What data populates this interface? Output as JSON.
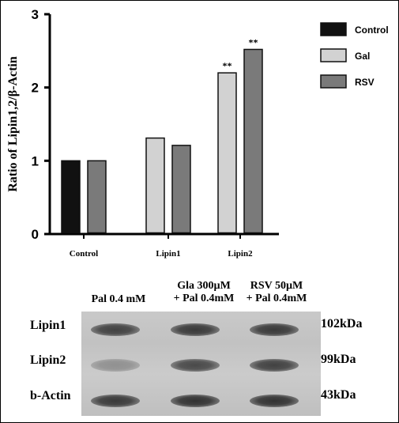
{
  "chart_data": {
    "type": "bar",
    "ylabel": "Ratio of Lipin1,2/β-Actin",
    "ylim": [
      0,
      3
    ],
    "yticks": [
      0,
      1,
      2,
      3
    ],
    "categories": [
      "Control",
      "Lipin1",
      "Lipin2"
    ],
    "grid": false,
    "legend_position": "top-right",
    "series": [
      {
        "name": "Control",
        "color": "#111111",
        "values": [
          1.0,
          null,
          null
        ]
      },
      {
        "name": "Gal",
        "color": "#d2d2d2",
        "values": [
          null,
          1.31,
          2.2
        ]
      },
      {
        "name": "RSV",
        "color": "#7a7a7a",
        "values": [
          1.0,
          1.21,
          2.52
        ]
      }
    ],
    "annotations": [
      {
        "category": "Lipin2",
        "series": "Gal",
        "text": "**"
      },
      {
        "category": "Lipin2",
        "series": "RSV",
        "text": "**"
      }
    ]
  },
  "blot": {
    "columns": [
      {
        "line1": "Pal 0.4 mM",
        "line2": ""
      },
      {
        "line1": "Gla 300µM",
        "line2": "+ Pal 0.4mM"
      },
      {
        "line1": "RSV 50µM",
        "line2": "+ Pal 0.4mM"
      }
    ],
    "rows": [
      {
        "label": "Lipin1",
        "size": "102kDa",
        "intensity": [
          0.85,
          0.9,
          0.9
        ]
      },
      {
        "label": "Lipin2",
        "size": "99kDa",
        "intensity": [
          0.35,
          0.8,
          0.85
        ]
      },
      {
        "label": "b-Actin",
        "size": "43kDa",
        "intensity": [
          0.9,
          0.95,
          0.95
        ]
      }
    ]
  }
}
